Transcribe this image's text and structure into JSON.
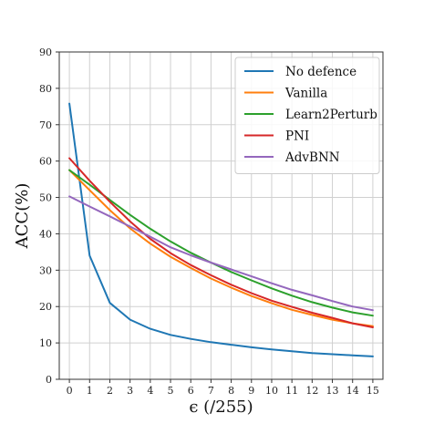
{
  "chart_data": {
    "type": "line",
    "xlabel": "ϵ (/255)",
    "ylabel": "ACC(%)",
    "xlim": [
      -0.5,
      15.5
    ],
    "ylim": [
      0,
      90
    ],
    "x_ticks": [
      0,
      1,
      2,
      3,
      4,
      5,
      6,
      7,
      8,
      9,
      10,
      11,
      12,
      13,
      14,
      15
    ],
    "y_ticks": [
      0,
      10,
      20,
      30,
      40,
      50,
      60,
      70,
      80,
      90
    ],
    "grid": true,
    "legend_position": "top-right",
    "x": [
      0,
      1,
      2,
      3,
      4,
      5,
      6,
      7,
      8,
      9,
      10,
      11,
      12,
      13,
      14,
      15
    ],
    "series": [
      {
        "name": "No defence",
        "color": "#1f77b4",
        "values": [
          75.8,
          34.0,
          21.0,
          16.4,
          13.9,
          12.2,
          11.1,
          10.2,
          9.5,
          8.8,
          8.2,
          7.7,
          7.2,
          6.9,
          6.6,
          6.3
        ]
      },
      {
        "name": "Vanilla",
        "color": "#ff7f0e",
        "values": [
          57.5,
          52.0,
          46.5,
          41.5,
          37.3,
          33.7,
          30.6,
          27.7,
          25.2,
          22.9,
          20.9,
          19.1,
          17.7,
          16.4,
          15.4,
          14.6
        ]
      },
      {
        "name": "Learn2Perturb",
        "color": "#2ca02c",
        "values": [
          57.5,
          53.5,
          49.3,
          45.2,
          41.4,
          37.9,
          34.8,
          32.1,
          29.5,
          27.2,
          25.0,
          23.0,
          21.2,
          19.7,
          18.4,
          17.5
        ]
      },
      {
        "name": "PNI",
        "color": "#d62728",
        "values": [
          60.8,
          54.6,
          48.8,
          43.4,
          38.6,
          34.7,
          31.4,
          28.6,
          26.0,
          23.7,
          21.6,
          19.9,
          18.3,
          16.9,
          15.4,
          14.3
        ]
      },
      {
        "name": "AdvBNN",
        "color": "#9467bd",
        "values": [
          50.3,
          47.5,
          44.8,
          42.0,
          39.2,
          36.3,
          34.1,
          32.1,
          30.2,
          28.3,
          26.4,
          24.6,
          23.1,
          21.5,
          20.0,
          19.0
        ]
      }
    ]
  }
}
